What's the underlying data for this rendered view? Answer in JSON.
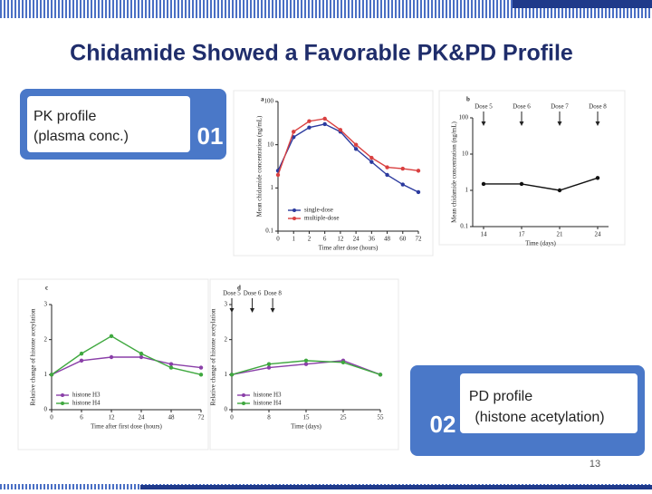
{
  "title": "Chidamide Showed a Favorable PK&PD Profile",
  "pk_box": {
    "lines": [
      "PK profile",
      "(plasma conc.)"
    ],
    "number": "01"
  },
  "pd_box": {
    "lines": [
      "PD profile",
      "(histone acetylation)"
    ],
    "number": "02"
  },
  "page_number": "13",
  "chart_data": [
    {
      "type": "line",
      "panel": "a",
      "log_y": true,
      "xlabel": "Time after dose (hours)",
      "ylabel": "Mean chidamide concentration (ng/mL)",
      "categories": [
        "0",
        "1",
        "2",
        "6",
        "12",
        "24",
        "36",
        "48",
        "60",
        "72"
      ],
      "ylim": [
        0.1,
        100
      ],
      "yticks": [
        0.1,
        1,
        10,
        100
      ],
      "series": [
        {
          "name": "single-dose",
          "color": "#2b3a9e",
          "values": [
            2.5,
            15,
            25,
            30,
            20,
            8,
            4,
            2,
            1.2,
            0.8
          ]
        },
        {
          "name": "multiple-dose",
          "color": "#d94040",
          "values": [
            2,
            20,
            35,
            40,
            22,
            10,
            5,
            3,
            2.8,
            2.5
          ]
        }
      ]
    },
    {
      "type": "line",
      "panel": "b",
      "log_y": true,
      "xlabel": "Time (days)",
      "ylabel": "Mean chidamide concentration (ng/mL)",
      "categories": [
        "14",
        "17",
        "21",
        "24"
      ],
      "ylim": [
        0.1,
        100
      ],
      "yticks": [
        0.1,
        1,
        10,
        100
      ],
      "annotations": [
        "Dose 5",
        "Dose 6",
        "Dose 7",
        "Dose 8"
      ],
      "series": [
        {
          "color": "#111111",
          "values": [
            1.5,
            1.5,
            1,
            2.2
          ]
        }
      ]
    },
    {
      "type": "line",
      "panel": "c",
      "log_y": false,
      "xlabel": "Time after first dose (hours)",
      "ylabel": "Relative change of histone acetylation",
      "categories": [
        "0",
        "6",
        "12",
        "24",
        "48",
        "72"
      ],
      "ylim": [
        0,
        3
      ],
      "yticks": [
        0,
        1,
        2,
        3
      ],
      "series": [
        {
          "name": "histone H3",
          "color": "#8a3fa8",
          "values": [
            1,
            1.4,
            1.5,
            1.5,
            1.3,
            1.2
          ]
        },
        {
          "name": "histone H4",
          "color": "#3fa83f",
          "values": [
            1,
            1.6,
            2.1,
            1.6,
            1.2,
            1.0
          ]
        }
      ]
    },
    {
      "type": "line",
      "panel": "d",
      "log_y": false,
      "xlabel": "Time (days)",
      "ylabel": "Relative change of histone acetylation",
      "categories": [
        "0",
        "8",
        "15",
        "25",
        "55"
      ],
      "ylim": [
        0,
        3
      ],
      "yticks": [
        0,
        1,
        2,
        3
      ],
      "annotations": [
        "Dose 5",
        "Dose 6",
        "Dose 8"
      ],
      "series": [
        {
          "name": "histone H3",
          "color": "#8a3fa8",
          "values": [
            1,
            1.2,
            1.3,
            1.4,
            1.0
          ]
        },
        {
          "name": "histone H4",
          "color": "#3fa83f",
          "values": [
            1,
            1.3,
            1.4,
            1.35,
            1.0
          ]
        }
      ]
    }
  ]
}
